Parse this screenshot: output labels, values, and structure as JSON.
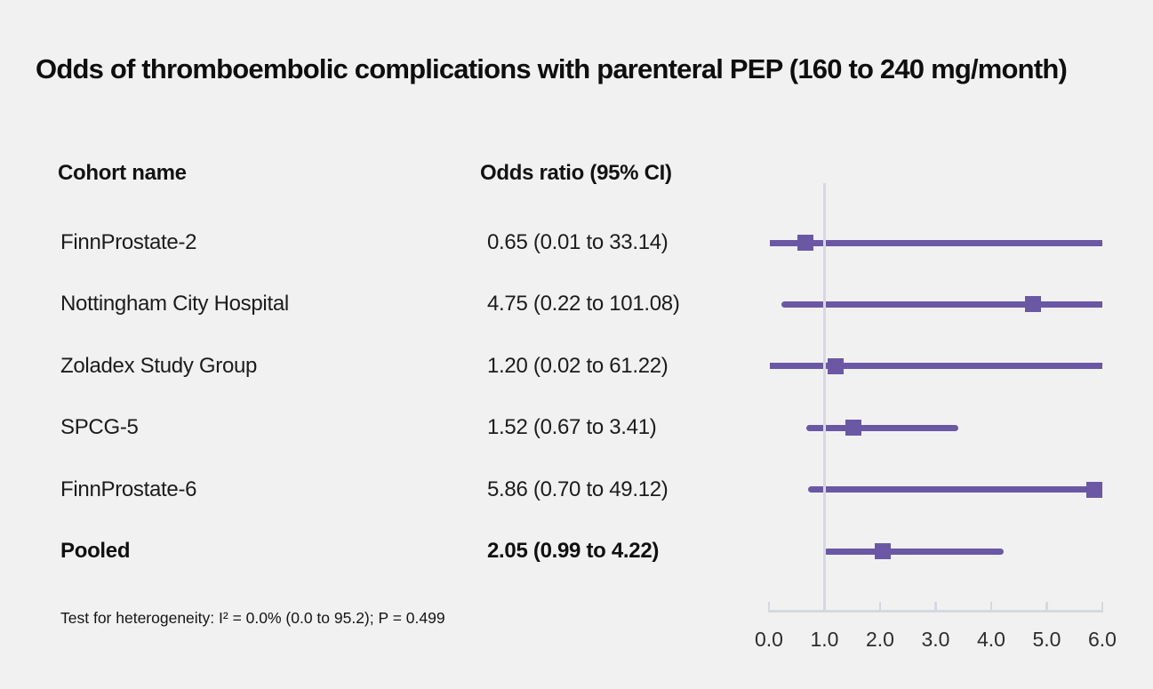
{
  "chart_data": {
    "type": "forest",
    "title": "Odds of thromboembolic complications with parenteral PEP (160 to 240 mg/month)",
    "columns": [
      "Cohort name",
      "Odds ratio (95% CI)"
    ],
    "rows": [
      {
        "cohort": "FinnProstate-2",
        "or_label": "0.65 (0.01 to 33.14)",
        "or": 0.65,
        "ci_low": 0.01,
        "ci_high": 33.14,
        "pooled": false
      },
      {
        "cohort": "Nottingham City Hospital",
        "or_label": "4.75 (0.22 to 101.08)",
        "or": 4.75,
        "ci_low": 0.22,
        "ci_high": 101.08,
        "pooled": false
      },
      {
        "cohort": "Zoladex Study Group",
        "or_label": "1.20 (0.02 to 61.22)",
        "or": 1.2,
        "ci_low": 0.02,
        "ci_high": 61.22,
        "pooled": false
      },
      {
        "cohort": "SPCG-5",
        "or_label": "1.52 (0.67 to 3.41)",
        "or": 1.52,
        "ci_low": 0.67,
        "ci_high": 3.41,
        "pooled": false
      },
      {
        "cohort": "FinnProstate-6",
        "or_label": "5.86 (0.70 to 49.12)",
        "or": 5.86,
        "ci_low": 0.7,
        "ci_high": 49.12,
        "pooled": false
      },
      {
        "cohort": "Pooled",
        "or_label": "2.05 (0.99 to 4.22)",
        "or": 2.05,
        "ci_low": 0.99,
        "ci_high": 4.22,
        "pooled": true
      }
    ],
    "xlabel": "",
    "ylabel": "",
    "xlim": [
      0,
      6
    ],
    "tick_values": [
      0,
      1,
      2,
      3,
      4,
      5,
      6
    ],
    "tick_labels": [
      "0.0",
      "1.0",
      "2.0",
      "3.0",
      "4.0",
      "5.0",
      "6.0"
    ],
    "reference_value": 1.0,
    "grid": false,
    "legend": false,
    "footnote": "Test for heterogeneity: I² = 0.0% (0.0 to 95.2); P = 0.499",
    "colors": {
      "marker": "#6b58a5",
      "ci_line": "#6b58a5",
      "axis": "#d5d9df",
      "reference_line": "#d6d9e0",
      "background": "#f2f1f1",
      "text": "#1a1a1a"
    }
  }
}
